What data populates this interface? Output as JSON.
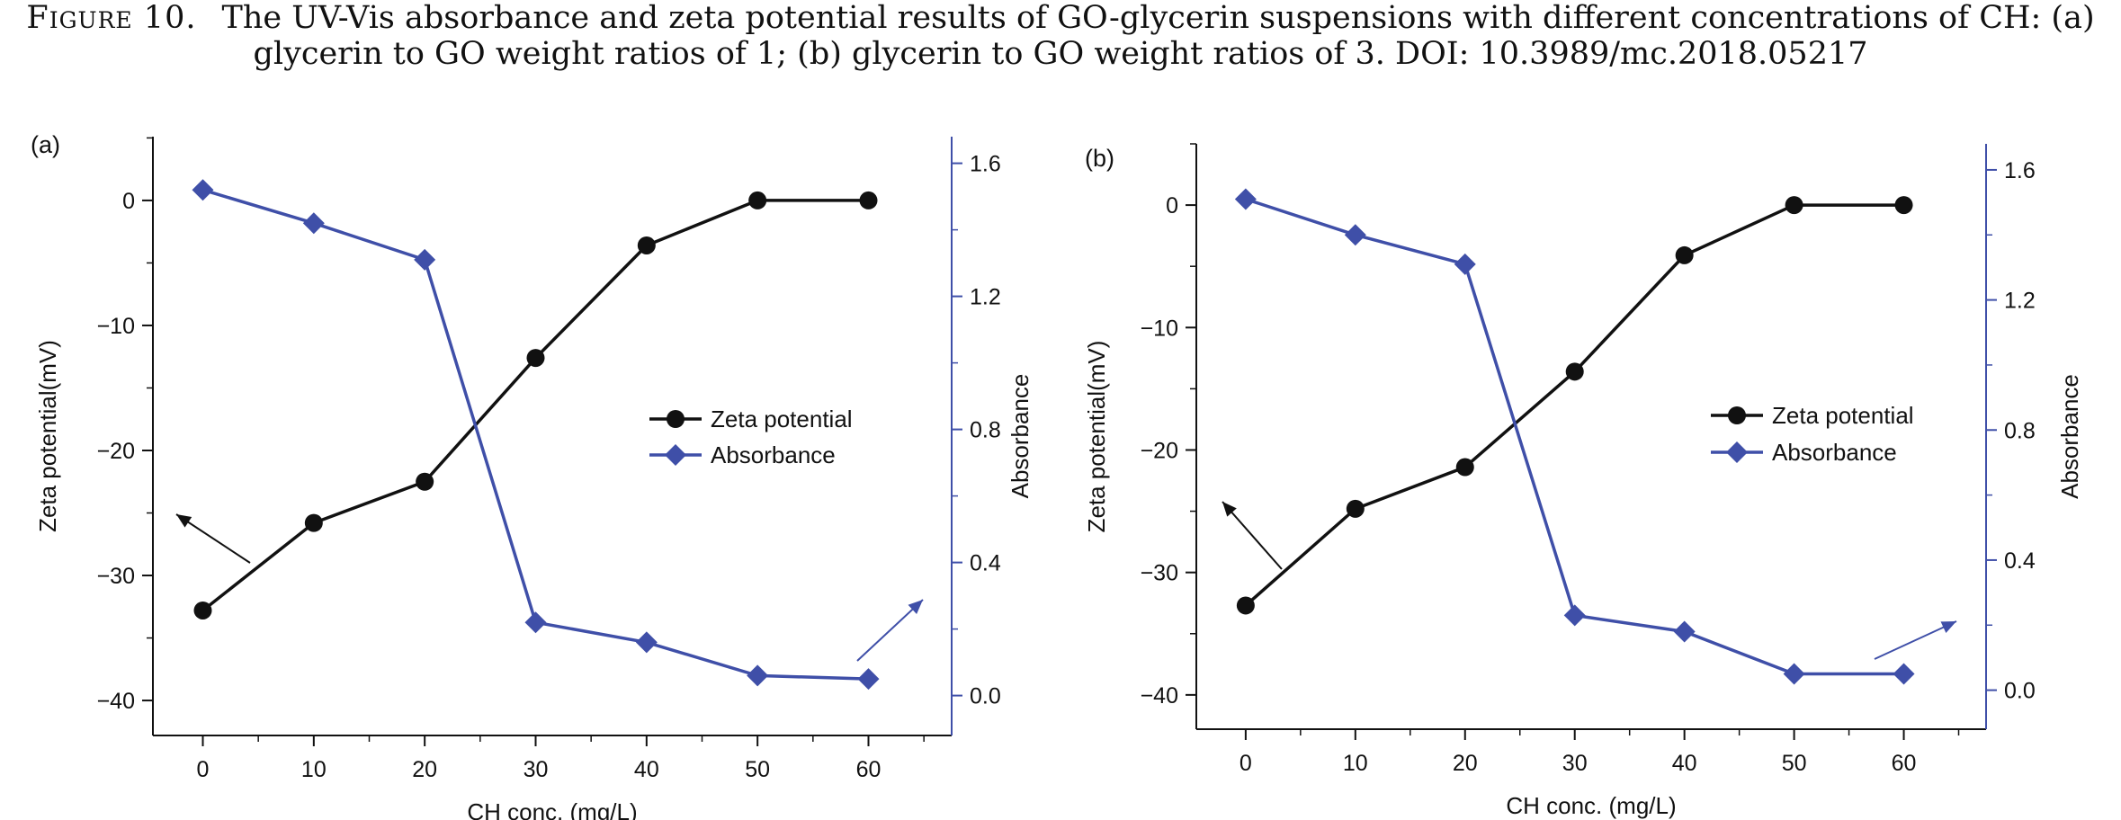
{
  "caption": {
    "figure_label": "Figure 10.",
    "line1": "The UV-Vis absorbance and zeta potential results of GO-glycerin suspensions with different concentrations of CH: (a)",
    "line2": "glycerin to GO weight ratios of 1; (b) glycerin to GO weight ratios of 3. DOI: 10.3989/mc.2018.05217"
  },
  "colors": {
    "zeta": "#111111",
    "absorbance": "#3f4fa8",
    "axis": "#111111"
  },
  "chart_data": [
    {
      "panel_label": "(a)",
      "type": "line",
      "xlabel": "CH conc. (mg/L)",
      "ylabel_left": "Zeta potential(mV)",
      "ylabel_right": "Absorbance",
      "xlim": [
        -4.5,
        67.5
      ],
      "ylim_left": [
        -42.8,
        5.1
      ],
      "ylim_right": [
        -0.12,
        1.68
      ],
      "xticks": [
        0,
        10,
        20,
        30,
        40,
        50,
        60
      ],
      "yticks_left": [
        0,
        -10,
        -20,
        -30,
        -40
      ],
      "yticks_right": [
        1.6,
        1.2,
        0.8,
        0.4,
        0.0
      ],
      "x": [
        0,
        10,
        20,
        30,
        40,
        50,
        60
      ],
      "series": [
        {
          "name": "Zeta potential",
          "axis": "left",
          "marker": "circle",
          "values": [
            -32.8,
            -25.8,
            -22.5,
            -12.6,
            -3.6,
            0,
            0
          ]
        },
        {
          "name": "Absorbance",
          "axis": "right",
          "marker": "diamond",
          "values": [
            1.52,
            1.42,
            1.31,
            0.22,
            0.16,
            0.06,
            0.05
          ]
        }
      ],
      "legend_position": "center-right"
    },
    {
      "panel_label": "(b)",
      "type": "line",
      "xlabel": "CH conc. (mg/L)",
      "ylabel_left": "Zeta potential(mV)",
      "ylabel_right": "Absorbance",
      "xlim": [
        -4.5,
        67.5
      ],
      "ylim_left": [
        -42.8,
        5.0
      ],
      "ylim_right": [
        -0.12,
        1.68
      ],
      "xticks": [
        0,
        10,
        20,
        30,
        40,
        50,
        60
      ],
      "yticks_left": [
        0,
        -10,
        -20,
        -30,
        -40
      ],
      "yticks_right": [
        1.6,
        1.2,
        0.8,
        0.4,
        0.0
      ],
      "x": [
        0,
        10,
        20,
        30,
        40,
        50,
        60
      ],
      "series": [
        {
          "name": "Zeta potential",
          "axis": "left",
          "marker": "circle",
          "values": [
            -32.7,
            -24.8,
            -21.4,
            -13.6,
            -4.1,
            0,
            0
          ]
        },
        {
          "name": "Absorbance",
          "axis": "right",
          "marker": "diamond",
          "values": [
            1.51,
            1.4,
            1.31,
            0.23,
            0.18,
            0.05,
            0.05
          ]
        }
      ],
      "legend_position": "center-right"
    }
  ]
}
